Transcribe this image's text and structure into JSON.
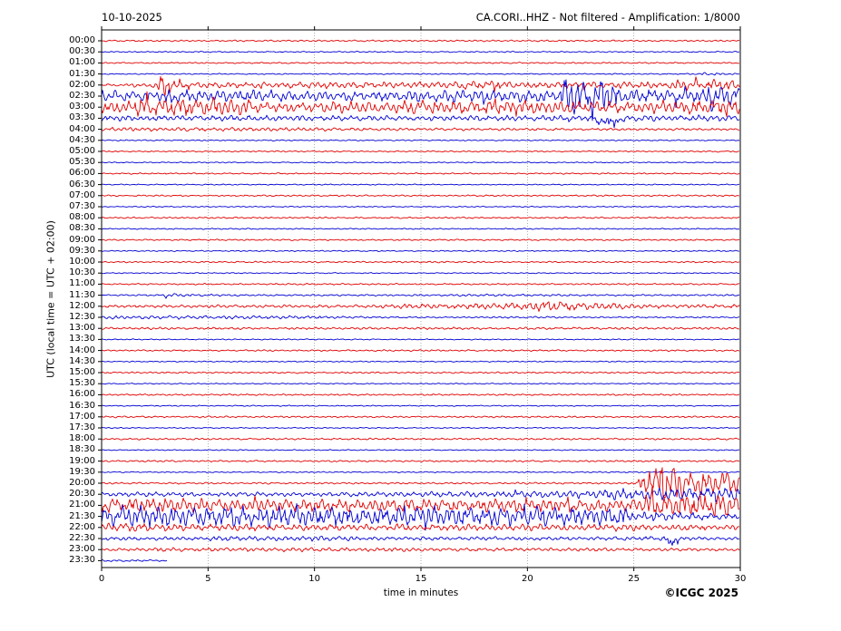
{
  "header": {
    "date": "10-10-2025",
    "title": "CA.CORI..HHZ - Not filtered - Amplification: 1/8000"
  },
  "footer": {
    "copyright": "©ICGC 2025"
  },
  "chart_data": {
    "type": "line",
    "variant": "helicorder-dayplot",
    "station_channel": "CA.CORI..HHZ",
    "filter_status": "Not filtered",
    "amplification": "1/8000",
    "date": "10-10-2025",
    "title": "CA.CORI..HHZ - Not filtered - Amplification: 1/8000",
    "xlabel": "time in minutes",
    "ylabel": "UTC (local time = UTC + 02:00)",
    "xlim": [
      0,
      30
    ],
    "x_ticks": [
      0,
      5,
      10,
      15,
      20,
      25,
      30
    ],
    "grid_minutes": [
      5,
      10,
      15,
      20,
      25
    ],
    "grid_on": true,
    "minutes_per_row": 30,
    "legend_position": "none",
    "colors": {
      "red": "#e00000",
      "blue": "#0000d2",
      "grid": "#8a8a8a",
      "frame": "#000000",
      "text": "#000000"
    },
    "segment_format": [
      "start_min",
      "end_min",
      "amp_px_start",
      "amp_px_end",
      "spike_prob",
      "spike_mult",
      "bias"
    ],
    "rows": [
      {
        "label": "00:00",
        "color": "red",
        "segments": [
          [
            0,
            30,
            0.8,
            0.8
          ]
        ]
      },
      {
        "label": "00:30",
        "color": "blue",
        "segments": [
          [
            0,
            30,
            0.6,
            0.6
          ]
        ]
      },
      {
        "label": "01:00",
        "color": "red",
        "segments": [
          [
            0,
            30,
            0.7,
            0.7
          ]
        ]
      },
      {
        "label": "01:30",
        "color": "blue",
        "segments": [
          [
            0,
            28.2,
            0.6,
            0.6
          ],
          [
            28.2,
            29.3,
            1.8,
            1.2
          ],
          [
            29.3,
            30,
            0.8,
            0.8
          ]
        ]
      },
      {
        "label": "02:00",
        "color": "red",
        "segments": [
          [
            0,
            1.2,
            1.0,
            1.4
          ],
          [
            1.2,
            2.6,
            2.0,
            2.6
          ],
          [
            2.6,
            3.7,
            8.5,
            3.5,
            0.22,
            2.0
          ],
          [
            3.7,
            16.5,
            3.0,
            3.0,
            0.03,
            1.8
          ],
          [
            16.5,
            19.5,
            4.6,
            4.6,
            0.04,
            1.8
          ],
          [
            19.5,
            25.5,
            3.2,
            3.2,
            0.03,
            1.8
          ],
          [
            25.5,
            30,
            4.5,
            5.5,
            0.05,
            1.8
          ]
        ]
      },
      {
        "label": "02:30",
        "color": "blue",
        "segments": [
          [
            0,
            9,
            6.2,
            6.2,
            0.05,
            1.8
          ],
          [
            9,
            14.5,
            4.6,
            4.6,
            0.03,
            1.7
          ],
          [
            14.5,
            21.5,
            6.0,
            6.0,
            0.04,
            1.8
          ],
          [
            21.5,
            24.4,
            19,
            14,
            0.1,
            1.7
          ],
          [
            24.4,
            28.4,
            6.5,
            6.5,
            0.05,
            1.8
          ],
          [
            28.4,
            30,
            13,
            12,
            0.1,
            1.7
          ]
        ]
      },
      {
        "label": "03:00",
        "color": "red",
        "segments": [
          [
            0,
            1.5,
            5.5,
            7.0
          ],
          [
            1.5,
            7,
            8.5,
            8.5,
            0.07,
            1.7
          ],
          [
            7,
            13,
            5.8,
            5.8,
            0.04,
            1.7
          ],
          [
            13,
            21,
            6.6,
            6.6,
            0.05,
            1.7
          ],
          [
            21,
            26,
            5.8,
            5.8,
            0.05,
            1.7
          ],
          [
            26,
            30,
            6.8,
            6.8,
            0.05,
            1.7
          ]
        ]
      },
      {
        "label": "03:30",
        "color": "blue",
        "segments": [
          [
            0,
            23.2,
            2.6,
            2.6,
            0.02,
            1.6
          ],
          [
            23.2,
            24.6,
            6.5,
            5.5,
            0.3,
            1.8,
            -1
          ],
          [
            24.6,
            28,
            2.6,
            2.6,
            0.02,
            1.6
          ],
          [
            28,
            30,
            3.0,
            2.6,
            0.05,
            1.6
          ]
        ]
      },
      {
        "label": "04:00",
        "color": "red",
        "segments": [
          [
            0,
            12,
            2.0,
            1.6
          ],
          [
            12,
            30,
            1.4,
            1.1
          ]
        ]
      },
      {
        "label": "04:30",
        "color": "blue",
        "segments": [
          [
            0,
            30,
            0.65,
            0.6
          ]
        ]
      },
      {
        "label": "05:00",
        "color": "red",
        "segments": [
          [
            0,
            30,
            0.7,
            0.7
          ]
        ]
      },
      {
        "label": "05:30",
        "color": "blue",
        "segments": [
          [
            0,
            30,
            0.55,
            0.55
          ]
        ]
      },
      {
        "label": "06:00",
        "color": "red",
        "segments": [
          [
            0,
            30,
            0.7,
            0.7
          ]
        ]
      },
      {
        "label": "06:30",
        "color": "blue",
        "segments": [
          [
            0,
            30,
            0.55,
            0.55
          ]
        ]
      },
      {
        "label": "07:00",
        "color": "red",
        "segments": [
          [
            0,
            30,
            0.75,
            0.75
          ]
        ]
      },
      {
        "label": "07:30",
        "color": "blue",
        "segments": [
          [
            0,
            30,
            0.55,
            0.55
          ]
        ]
      },
      {
        "label": "08:00",
        "color": "red",
        "segments": [
          [
            0,
            30,
            0.75,
            0.75
          ]
        ]
      },
      {
        "label": "08:30",
        "color": "blue",
        "segments": [
          [
            0,
            30,
            0.6,
            0.6
          ]
        ]
      },
      {
        "label": "09:00",
        "color": "red",
        "segments": [
          [
            0,
            30,
            0.75,
            0.75
          ]
        ]
      },
      {
        "label": "09:30",
        "color": "blue",
        "segments": [
          [
            0,
            30,
            0.6,
            0.6
          ]
        ]
      },
      {
        "label": "10:00",
        "color": "red",
        "segments": [
          [
            0,
            30,
            0.75,
            0.75
          ]
        ]
      },
      {
        "label": "10:30",
        "color": "blue",
        "segments": [
          [
            0,
            30,
            0.55,
            0.55
          ]
        ]
      },
      {
        "label": "11:00",
        "color": "red",
        "segments": [
          [
            0,
            30,
            0.75,
            0.75
          ]
        ]
      },
      {
        "label": "11:30",
        "color": "blue",
        "segments": [
          [
            0,
            2.8,
            0.7,
            0.7
          ],
          [
            2.8,
            4.3,
            2.2,
            1.5,
            0.1,
            1.6
          ],
          [
            4.3,
            6.5,
            1.2,
            1.0
          ],
          [
            6.5,
            16.5,
            0.8,
            0.8
          ],
          [
            16.5,
            22,
            1.1,
            1.0
          ],
          [
            22,
            30,
            0.8,
            0.8
          ]
        ]
      },
      {
        "label": "12:00",
        "color": "red",
        "segments": [
          [
            0,
            13,
            1.3,
            1.5
          ],
          [
            13,
            19,
            2.2,
            3.0
          ],
          [
            19,
            20.6,
            4.0,
            5.0
          ],
          [
            20.6,
            22.4,
            6.0,
            5.0
          ],
          [
            22.4,
            25,
            3.6,
            2.8
          ],
          [
            25,
            30,
            2.3,
            1.8
          ]
        ]
      },
      {
        "label": "12:30",
        "color": "blue",
        "segments": [
          [
            0,
            10.5,
            1.9,
            1.6
          ],
          [
            10.5,
            14,
            1.2,
            0.9
          ],
          [
            14,
            19,
            0.75,
            0.75
          ],
          [
            19,
            21.5,
            1.0,
            1.0
          ],
          [
            21.5,
            30,
            0.7,
            0.7
          ]
        ]
      },
      {
        "label": "13:00",
        "color": "red",
        "segments": [
          [
            0,
            30,
            1.15,
            1.1
          ]
        ]
      },
      {
        "label": "13:30",
        "color": "blue",
        "segments": [
          [
            0,
            30,
            0.55,
            0.55
          ]
        ]
      },
      {
        "label": "14:00",
        "color": "red",
        "segments": [
          [
            0,
            30,
            0.8,
            0.8
          ]
        ]
      },
      {
        "label": "14:30",
        "color": "blue",
        "segments": [
          [
            0,
            30,
            0.55,
            0.55
          ]
        ]
      },
      {
        "label": "15:00",
        "color": "red",
        "segments": [
          [
            0,
            30,
            0.8,
            0.8
          ]
        ]
      },
      {
        "label": "15:30",
        "color": "blue",
        "segments": [
          [
            0,
            30,
            0.55,
            0.55
          ]
        ]
      },
      {
        "label": "16:00",
        "color": "red",
        "segments": [
          [
            0,
            30,
            0.8,
            0.8
          ]
        ]
      },
      {
        "label": "16:30",
        "color": "blue",
        "segments": [
          [
            0,
            30,
            0.55,
            0.55
          ]
        ]
      },
      {
        "label": "17:00",
        "color": "red",
        "segments": [
          [
            0,
            30,
            0.85,
            0.85
          ]
        ]
      },
      {
        "label": "17:30",
        "color": "blue",
        "segments": [
          [
            0,
            30,
            0.55,
            0.55
          ]
        ]
      },
      {
        "label": "18:00",
        "color": "red",
        "segments": [
          [
            0,
            30,
            0.85,
            0.85
          ]
        ]
      },
      {
        "label": "18:30",
        "color": "blue",
        "segments": [
          [
            0,
            30,
            0.55,
            0.55
          ]
        ]
      },
      {
        "label": "19:00",
        "color": "red",
        "segments": [
          [
            0,
            30,
            0.85,
            0.85
          ]
        ]
      },
      {
        "label": "19:30",
        "color": "blue",
        "segments": [
          [
            0,
            30,
            0.6,
            0.6
          ]
        ]
      },
      {
        "label": "20:00",
        "color": "red",
        "segments": [
          [
            0,
            25.2,
            0.9,
            0.9
          ],
          [
            25.2,
            26.2,
            5,
            20,
            0.15,
            1.5
          ],
          [
            26.2,
            27.6,
            26,
            16,
            0.1,
            1.4
          ],
          [
            27.6,
            30,
            13,
            9,
            0.1,
            1.4
          ]
        ]
      },
      {
        "label": "20:30",
        "color": "blue",
        "segments": [
          [
            0,
            12,
            2.1,
            2.1,
            0.02,
            1.5
          ],
          [
            12,
            19,
            2.4,
            2.8,
            0.02,
            1.5
          ],
          [
            19,
            24,
            3.5,
            4.5,
            0.03,
            1.5
          ],
          [
            24,
            30,
            5.5,
            6.5,
            0.05,
            1.5
          ]
        ]
      },
      {
        "label": "21:00",
        "color": "red",
        "segments": [
          [
            0,
            5,
            7.5,
            7.5,
            0.05,
            1.7
          ],
          [
            5,
            25.5,
            6.2,
            6.2,
            0.05,
            1.7
          ],
          [
            25.5,
            30,
            13,
            11,
            0.1,
            1.5
          ]
        ]
      },
      {
        "label": "21:30",
        "color": "blue",
        "segments": [
          [
            0,
            5,
            10,
            10,
            0.05,
            1.5
          ],
          [
            5,
            25,
            10.5,
            9.5,
            0.05,
            1.5
          ],
          [
            25,
            30,
            4.5,
            3.0,
            0.04,
            1.5
          ]
        ]
      },
      {
        "label": "22:00",
        "color": "red",
        "segments": [
          [
            0,
            3,
            4.2,
            3.6,
            0.03,
            1.5
          ],
          [
            3,
            25,
            3.2,
            3.2,
            0.02,
            1.5
          ],
          [
            25,
            30,
            3.6,
            2.4,
            0.03,
            1.5
          ]
        ]
      },
      {
        "label": "22:30",
        "color": "blue",
        "segments": [
          [
            0,
            5,
            1.7,
            1.7
          ],
          [
            5,
            12,
            2.4,
            2.4
          ],
          [
            12,
            25,
            1.9,
            1.9
          ],
          [
            25,
            26.5,
            2.3,
            2.3
          ],
          [
            26.5,
            27.1,
            7,
            6,
            0.3,
            1.6,
            -1
          ],
          [
            27.1,
            30,
            1.9,
            1.5
          ]
        ]
      },
      {
        "label": "23:00",
        "color": "red",
        "segments": [
          [
            0,
            2.5,
            1.2,
            1.7
          ],
          [
            2.5,
            15,
            2.0,
            2.0
          ],
          [
            15,
            30,
            1.7,
            1.4
          ]
        ]
      },
      {
        "label": "23:30",
        "color": "blue",
        "segments": [
          [
            0,
            3.1,
            1.1,
            1.0
          ]
        ]
      }
    ]
  }
}
